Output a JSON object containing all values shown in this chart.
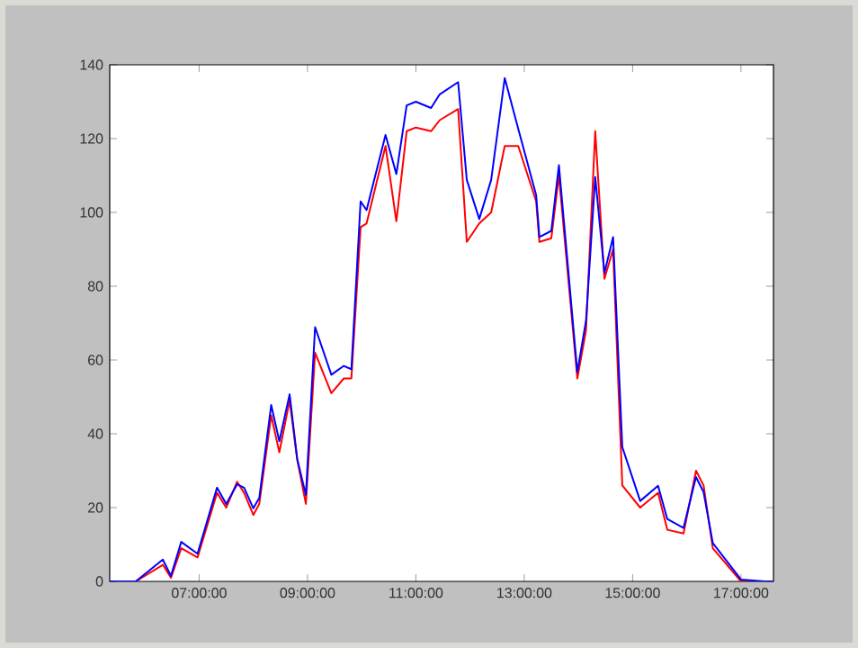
{
  "chart_data": {
    "type": "line",
    "xlim": [
      5.35,
      17.6
    ],
    "ylim": [
      0,
      140
    ],
    "xticks": [
      {
        "value": 7,
        "label": "07:00:00"
      },
      {
        "value": 9,
        "label": "09:00:00"
      },
      {
        "value": 11,
        "label": "11:00:00"
      },
      {
        "value": 13,
        "label": "13:00:00"
      },
      {
        "value": 15,
        "label": "15:00:00"
      },
      {
        "value": 17,
        "label": "17:00:00"
      }
    ],
    "yticks": [
      0,
      20,
      40,
      60,
      80,
      100,
      120,
      140
    ],
    "x": [
      5.35,
      5.83,
      6.33,
      6.48,
      6.67,
      6.97,
      7.33,
      7.5,
      7.7,
      7.83,
      8.0,
      8.11,
      8.33,
      8.48,
      8.67,
      8.81,
      8.97,
      9.14,
      9.44,
      9.67,
      9.81,
      9.98,
      10.09,
      10.44,
      10.64,
      10.83,
      11.0,
      11.28,
      11.44,
      11.78,
      11.94,
      12.17,
      12.39,
      12.64,
      12.89,
      13.22,
      13.28,
      13.5,
      13.64,
      13.98,
      14.14,
      14.31,
      14.48,
      14.64,
      14.81,
      15.14,
      15.47,
      15.64,
      15.94,
      16.17,
      16.31,
      16.48,
      17.0,
      17.44,
      17.6
    ],
    "series": [
      {
        "color": "#ff0000",
        "values": [
          0,
          0,
          4.5,
          1,
          9,
          6.5,
          24,
          20,
          27,
          24,
          18,
          21,
          45,
          35,
          49,
          33,
          21,
          62,
          51,
          55,
          55,
          96,
          97,
          118,
          97.6,
          122,
          123,
          122,
          125,
          128,
          92,
          97,
          100,
          118,
          118,
          103,
          92,
          93,
          110,
          55,
          68,
          122,
          82,
          90,
          26,
          20,
          24,
          14,
          13,
          30,
          26,
          9,
          0,
          0,
          0
        ]
      },
      {
        "color": "#0000ff",
        "values": [
          0,
          0,
          5.9,
          1.5,
          10.7,
          7.5,
          25.4,
          21,
          26.3,
          25.4,
          19.8,
          22.6,
          47.8,
          38,
          50.7,
          33.2,
          23.4,
          68.9,
          56,
          58.4,
          57.5,
          103,
          100.6,
          121,
          110.4,
          129,
          130,
          128.3,
          132,
          135.3,
          108.8,
          98.2,
          108.8,
          136.4,
          122.6,
          104.7,
          93.3,
          95,
          112.8,
          56.7,
          70.6,
          109.6,
          83.6,
          93.3,
          36.4,
          21.8,
          25.9,
          16.9,
          14.5,
          28.3,
          24.2,
          10.4,
          0.5,
          0,
          0
        ]
      }
    ]
  }
}
